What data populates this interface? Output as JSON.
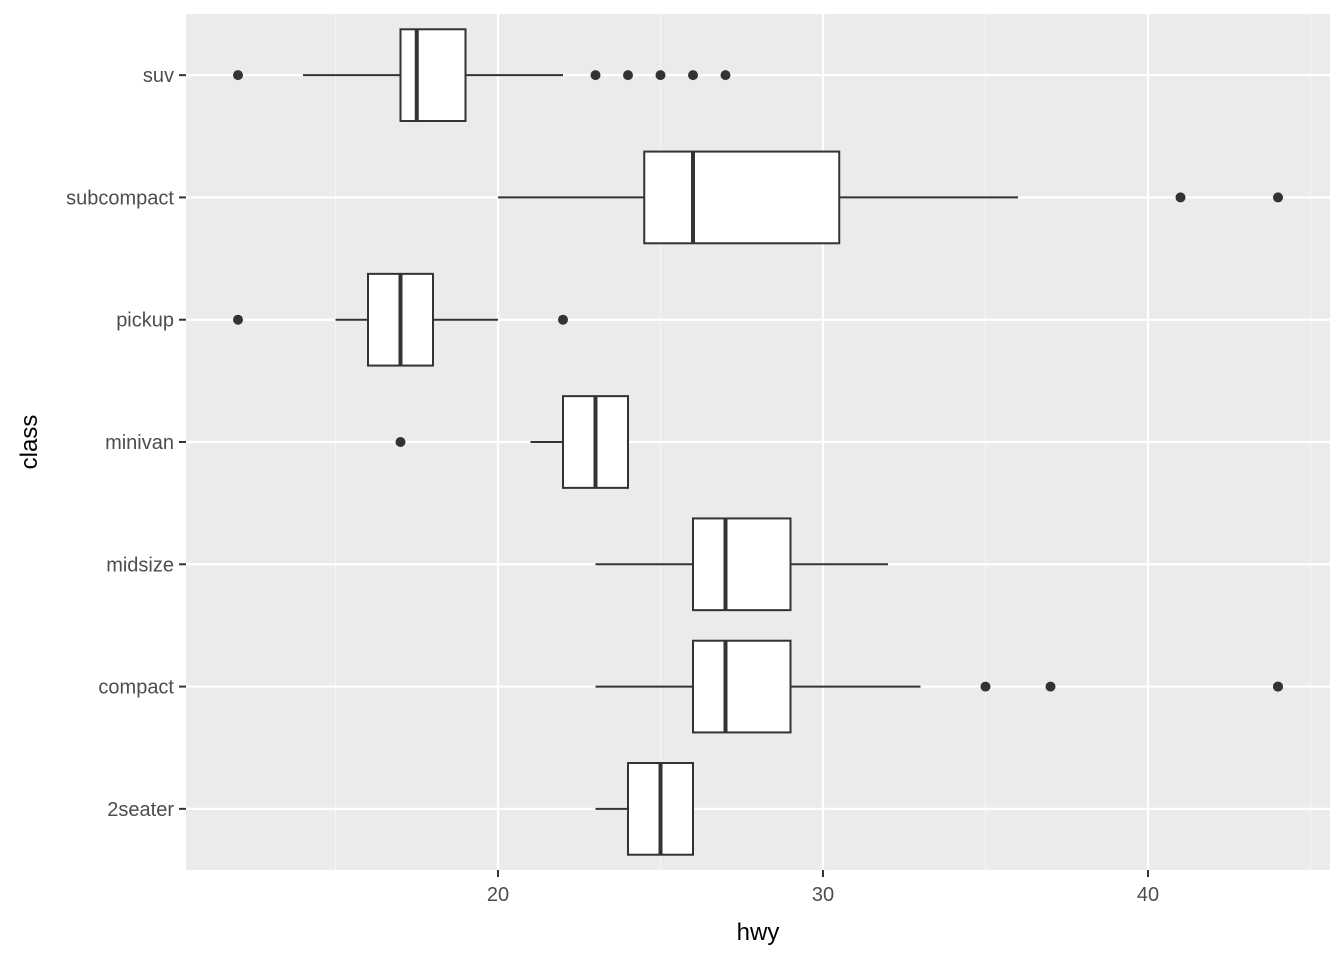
{
  "chart_data": {
    "type": "boxplot",
    "orientation": "horizontal",
    "title": "",
    "xlabel": "hwy",
    "ylabel": "class",
    "xlim": [
      10.4,
      45.6
    ],
    "x_ticks": [
      20,
      30,
      40
    ],
    "x_tick_labels": [
      "20",
      "30",
      "40"
    ],
    "x_minor_ticks": [
      15,
      25,
      35,
      45
    ],
    "categories": [
      "2seater",
      "compact",
      "midsize",
      "minivan",
      "pickup",
      "subcompact",
      "suv"
    ],
    "boxes": [
      {
        "category": "2seater",
        "whisker_low": 23,
        "q1": 24,
        "median": 25,
        "q3": 26,
        "whisker_high": 26,
        "outliers": []
      },
      {
        "category": "compact",
        "whisker_low": 23,
        "q1": 26,
        "median": 27,
        "q3": 29,
        "whisker_high": 33,
        "outliers": [
          35,
          37,
          44,
          44
        ]
      },
      {
        "category": "midsize",
        "whisker_low": 23,
        "q1": 26,
        "median": 27,
        "q3": 29,
        "whisker_high": 32,
        "outliers": []
      },
      {
        "category": "minivan",
        "whisker_low": 21,
        "q1": 22,
        "median": 23,
        "q3": 24,
        "whisker_high": 24,
        "outliers": [
          17
        ]
      },
      {
        "category": "pickup",
        "whisker_low": 15,
        "q1": 16,
        "median": 17,
        "q3": 18,
        "whisker_high": 20,
        "outliers": [
          12,
          22
        ]
      },
      {
        "category": "subcompact",
        "whisker_low": 20,
        "q1": 24.5,
        "median": 26,
        "q3": 30.5,
        "whisker_high": 36,
        "outliers": [
          41,
          44
        ]
      },
      {
        "category": "suv",
        "whisker_low": 14,
        "q1": 17,
        "median": 17.5,
        "q3": 19,
        "whisker_high": 22,
        "outliers": [
          12,
          23,
          24,
          25,
          26,
          27
        ]
      }
    ],
    "grid": true,
    "legend": "none",
    "colors": {
      "panel_background": "#ebebeb",
      "grid_major": "#ffffff",
      "grid_minor": "#f5f5f5",
      "box_fill": "#ffffff",
      "box_stroke": "#333333",
      "outlier": "#333333",
      "tick_label": "#4d4d4d",
      "axis_title": "#000000"
    }
  }
}
